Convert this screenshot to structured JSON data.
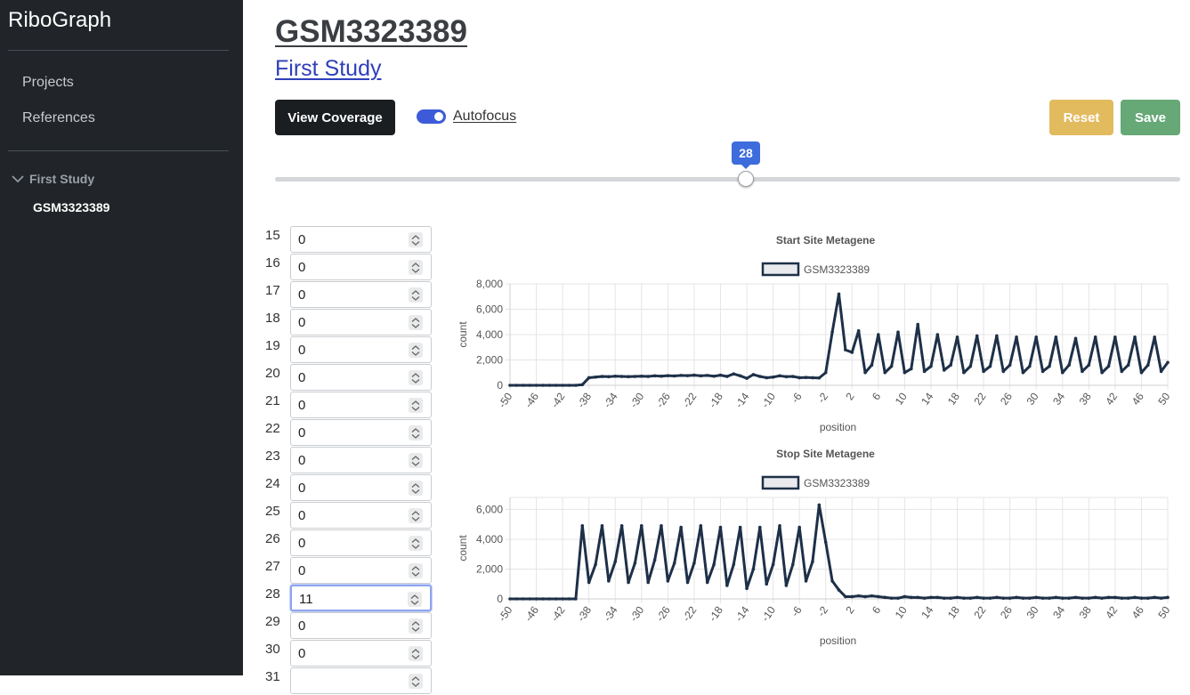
{
  "sidebar": {
    "brand": "RiboGraph",
    "nav": [
      {
        "label": "Projects"
      },
      {
        "label": "References"
      }
    ],
    "tree": {
      "parent": "First Study",
      "child": "GSM3323389"
    }
  },
  "header": {
    "title": "GSM3323389",
    "subtitle": "First Study"
  },
  "toolbar": {
    "view_coverage_label": "View Coverage",
    "autofocus_label": "Autofocus",
    "autofocus_on": true,
    "reset_label": "Reset",
    "save_label": "Save"
  },
  "slider": {
    "value": "28",
    "min": 15,
    "max": 40
  },
  "inputs": [
    {
      "label": "15",
      "value": "0"
    },
    {
      "label": "16",
      "value": "0"
    },
    {
      "label": "17",
      "value": "0"
    },
    {
      "label": "18",
      "value": "0"
    },
    {
      "label": "19",
      "value": "0"
    },
    {
      "label": "20",
      "value": "0"
    },
    {
      "label": "21",
      "value": "0"
    },
    {
      "label": "22",
      "value": "0"
    },
    {
      "label": "23",
      "value": "0"
    },
    {
      "label": "24",
      "value": "0"
    },
    {
      "label": "25",
      "value": "0"
    },
    {
      "label": "26",
      "value": "0"
    },
    {
      "label": "27",
      "value": "0"
    },
    {
      "label": "28",
      "value": "11",
      "focused": true
    },
    {
      "label": "29",
      "value": "0"
    },
    {
      "label": "30",
      "value": "0"
    },
    {
      "label": "31",
      "value": ""
    }
  ],
  "colors": {
    "line": "#1e3048",
    "legend_fill": "#e8eaee",
    "grid": "#e5e5e5"
  },
  "chart_data": [
    {
      "type": "line",
      "title": "Start Site Metagene",
      "xlabel": "position",
      "ylabel": "count",
      "ylim": [
        0,
        8000
      ],
      "yticks": [
        0,
        2000,
        4000,
        6000,
        8000
      ],
      "ytick_labels": [
        "0",
        "2,000",
        "4,000",
        "6,000",
        "8,000"
      ],
      "xtick_labels": [
        "-50",
        "-46",
        "-42",
        "-38",
        "-34",
        "-30",
        "-26",
        "-22",
        "-18",
        "-14",
        "-10",
        "-6",
        "-2",
        "2",
        "6",
        "10",
        "14",
        "18",
        "22",
        "26",
        "30",
        "34",
        "38",
        "42",
        "46",
        "50"
      ],
      "x": [
        -50,
        -49,
        -48,
        -47,
        -46,
        -45,
        -44,
        -43,
        -42,
        -41,
        -40,
        -39,
        -38,
        -37,
        -36,
        -35,
        -34,
        -33,
        -32,
        -31,
        -30,
        -29,
        -28,
        -27,
        -26,
        -25,
        -24,
        -23,
        -22,
        -21,
        -20,
        -19,
        -18,
        -17,
        -16,
        -15,
        -14,
        -13,
        -12,
        -11,
        -10,
        -9,
        -8,
        -7,
        -6,
        -5,
        -4,
        -3,
        -2,
        -1,
        0,
        1,
        2,
        3,
        4,
        5,
        6,
        7,
        8,
        9,
        10,
        11,
        12,
        13,
        14,
        15,
        16,
        17,
        18,
        19,
        20,
        21,
        22,
        23,
        24,
        25,
        26,
        27,
        28,
        29,
        30,
        31,
        32,
        33,
        34,
        35,
        36,
        37,
        38,
        39,
        40,
        41,
        42,
        43,
        44,
        45,
        46,
        47,
        48,
        49,
        50
      ],
      "series": [
        {
          "name": "GSM3323389",
          "values": [
            0,
            0,
            0,
            0,
            0,
            0,
            0,
            0,
            0,
            0,
            0,
            50,
            600,
            650,
            700,
            680,
            720,
            700,
            680,
            700,
            720,
            700,
            750,
            720,
            760,
            740,
            780,
            760,
            800,
            750,
            780,
            720,
            800,
            700,
            900,
            750,
            550,
            850,
            700,
            600,
            650,
            750,
            680,
            700,
            600,
            620,
            600,
            580,
            1000,
            4200,
            7200,
            2800,
            2600,
            4300,
            1000,
            1600,
            4000,
            1000,
            1500,
            4200,
            1000,
            1300,
            4800,
            1100,
            1500,
            4000,
            1200,
            1600,
            3800,
            1000,
            1500,
            3900,
            1100,
            1500,
            3900,
            1100,
            1600,
            3800,
            1000,
            1500,
            3800,
            1100,
            1500,
            3800,
            1000,
            1600,
            3700,
            1100,
            1600,
            3800,
            1000,
            1500,
            3800,
            1100,
            1600,
            3800,
            1000,
            1600,
            3800,
            1100,
            1800
          ]
        }
      ],
      "legend": "top"
    },
    {
      "type": "line",
      "title": "Stop Site Metagene",
      "xlabel": "position",
      "ylabel": "count",
      "ylim": [
        0,
        6800
      ],
      "yticks": [
        0,
        2000,
        4000,
        6000
      ],
      "ytick_labels": [
        "0",
        "2,000",
        "4,000",
        "6,000"
      ],
      "xtick_labels": [
        "-50",
        "-46",
        "-42",
        "-38",
        "-34",
        "-30",
        "-26",
        "-22",
        "-18",
        "-14",
        "-10",
        "-6",
        "-2",
        "2",
        "6",
        "10",
        "14",
        "18",
        "22",
        "26",
        "30",
        "34",
        "38",
        "42",
        "46",
        "50"
      ],
      "x": [
        -50,
        -49,
        -48,
        -47,
        -46,
        -45,
        -44,
        -43,
        -42,
        -41,
        -40,
        -39,
        -38,
        -37,
        -36,
        -35,
        -34,
        -33,
        -32,
        -31,
        -30,
        -29,
        -28,
        -27,
        -26,
        -25,
        -24,
        -23,
        -22,
        -21,
        -20,
        -19,
        -18,
        -17,
        -16,
        -15,
        -14,
        -13,
        -12,
        -11,
        -10,
        -9,
        -8,
        -7,
        -6,
        -5,
        -4,
        -3,
        -2,
        -1,
        0,
        1,
        2,
        3,
        4,
        5,
        6,
        7,
        8,
        9,
        10,
        11,
        12,
        13,
        14,
        15,
        16,
        17,
        18,
        19,
        20,
        21,
        22,
        23,
        24,
        25,
        26,
        27,
        28,
        29,
        30,
        31,
        32,
        33,
        34,
        35,
        36,
        37,
        38,
        39,
        40,
        41,
        42,
        43,
        44,
        45,
        46,
        47,
        48,
        49,
        50
      ],
      "series": [
        {
          "name": "GSM3323389",
          "values": [
            0,
            0,
            0,
            0,
            0,
            0,
            0,
            0,
            0,
            0,
            0,
            4900,
            1100,
            2300,
            4900,
            1200,
            2500,
            4900,
            1100,
            2400,
            4900,
            1100,
            2600,
            4900,
            1200,
            2400,
            4800,
            1100,
            2400,
            4900,
            1100,
            2300,
            4800,
            900,
            2300,
            4800,
            700,
            2000,
            4800,
            1000,
            2300,
            4900,
            900,
            2300,
            4800,
            1200,
            2500,
            6300,
            3800,
            1200,
            600,
            150,
            150,
            200,
            150,
            200,
            150,
            100,
            50,
            50,
            150,
            100,
            100,
            50,
            100,
            100,
            50,
            50,
            100,
            50,
            50,
            100,
            50,
            50,
            100,
            50,
            50,
            100,
            50,
            50,
            100,
            50,
            50,
            100,
            50,
            50,
            100,
            50,
            50,
            100,
            50,
            100,
            100,
            50,
            50,
            100,
            50,
            50,
            100,
            50,
            100
          ]
        }
      ],
      "legend": "top"
    }
  ]
}
